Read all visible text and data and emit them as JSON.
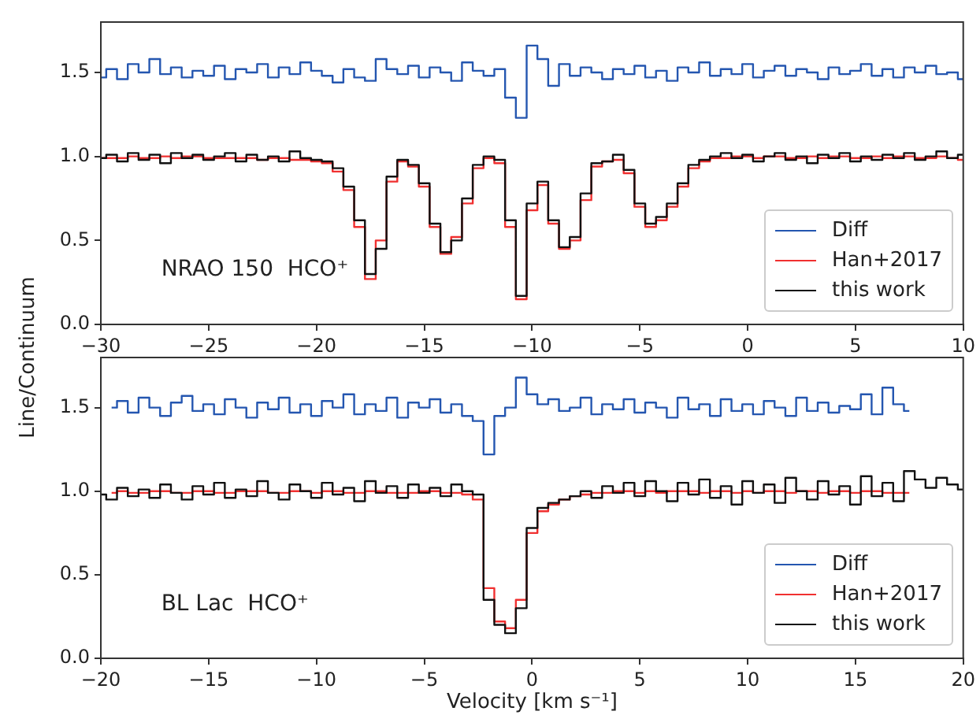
{
  "chart_data": [
    {
      "type": "step",
      "ylabel": "Line/Continuum",
      "annotations": [
        "NRAO 150  HCO⁺"
      ],
      "legend": "bottom right",
      "grid": false,
      "x": [
        -30,
        -29.5,
        -29,
        -28.5,
        -28,
        -27.5,
        -27,
        -26.5,
        -26,
        -25.5,
        -25,
        -24.5,
        -24,
        -23.5,
        -23,
        -22.5,
        -22,
        -21.5,
        -21,
        -20.5,
        -20,
        -19.5,
        -19,
        -18.5,
        -18,
        -17.5,
        -17,
        -16.5,
        -16,
        -15.5,
        -15,
        -14.5,
        -14,
        -13.5,
        -13,
        -12.5,
        -12,
        -11.5,
        -11,
        -10.5,
        -10,
        -9.5,
        -9,
        -8.5,
        -8,
        -7.5,
        -7,
        -6.5,
        -6,
        -5.5,
        -5,
        -4.5,
        -4,
        -3.5,
        -3,
        -2.5,
        -2,
        -1.5,
        -1,
        -0.5,
        0,
        0.5,
        1,
        1.5,
        2,
        2.5,
        3,
        3.5,
        4,
        4.5,
        5,
        5.5,
        6,
        6.5,
        7,
        7.5,
        8,
        8.5,
        9,
        9.5,
        10
      ],
      "xlim": [
        -30,
        10
      ],
      "xticks": [
        {
          "value": -30,
          "label": "−30"
        },
        {
          "value": -25,
          "label": "−25"
        },
        {
          "value": -20,
          "label": "−20"
        },
        {
          "value": -15,
          "label": "−15"
        },
        {
          "value": -10,
          "label": "−10"
        },
        {
          "value": -5,
          "label": "−5"
        },
        0,
        5,
        10
      ],
      "ylim": [
        0,
        1.8
      ],
      "yticks": [
        {
          "value": 0,
          "label": "0.0"
        },
        {
          "value": 0.5,
          "label": "0.5"
        },
        {
          "value": 1,
          "label": "1.0"
        },
        {
          "value": 1.5,
          "label": "1.5"
        }
      ],
      "series": [
        {
          "name": "Diff",
          "color": "#2456b0",
          "values": [
            1.47,
            1.52,
            1.46,
            1.55,
            1.5,
            1.58,
            1.49,
            1.53,
            1.47,
            1.51,
            1.48,
            1.54,
            1.46,
            1.52,
            1.5,
            1.55,
            1.47,
            1.53,
            1.49,
            1.56,
            1.51,
            1.48,
            1.44,
            1.52,
            1.47,
            1.45,
            1.58,
            1.52,
            1.49,
            1.54,
            1.47,
            1.53,
            1.5,
            1.45,
            1.56,
            1.51,
            1.48,
            1.52,
            1.35,
            1.23,
            1.66,
            1.58,
            1.42,
            1.55,
            1.48,
            1.53,
            1.5,
            1.46,
            1.52,
            1.49,
            1.54,
            1.47,
            1.51,
            1.45,
            1.53,
            1.5,
            1.56,
            1.48,
            1.52,
            1.49,
            1.55,
            1.47,
            1.51,
            1.54,
            1.48,
            1.52,
            1.5,
            1.46,
            1.53,
            1.49,
            1.51,
            1.55,
            1.48,
            1.52,
            1.47,
            1.53,
            1.5,
            1.54,
            1.49,
            1.5,
            1.46
          ]
        },
        {
          "name": "Han+2017",
          "color": "#f03030",
          "values": [
            0.99,
            0.99,
            0.99,
            1.0,
            0.99,
            0.99,
            1.0,
            0.99,
            1.0,
            1.0,
            0.99,
            0.99,
            0.99,
            0.99,
            0.99,
            0.98,
            0.99,
            0.99,
            0.98,
            0.98,
            0.97,
            0.96,
            0.91,
            0.8,
            0.58,
            0.27,
            0.5,
            0.85,
            0.97,
            0.94,
            0.82,
            0.58,
            0.42,
            0.52,
            0.72,
            0.93,
            0.99,
            0.96,
            0.58,
            0.15,
            0.68,
            0.83,
            0.6,
            0.45,
            0.5,
            0.74,
            0.94,
            0.97,
            0.98,
            0.9,
            0.7,
            0.58,
            0.62,
            0.7,
            0.82,
            0.93,
            0.97,
            0.99,
            0.99,
            1.0,
            1.0,
            0.99,
            1.0,
            1.0,
            0.99,
            0.99,
            1.0,
            0.99,
            1.0,
            1.0,
            0.99,
            0.99,
            1.0,
            0.99,
            1.0,
            1.0,
            0.99,
            0.99,
            1.0,
            0.99,
            0.98
          ]
        },
        {
          "name": "this work",
          "color": "#111111",
          "values": [
            0.99,
            1.01,
            0.97,
            1.02,
            0.98,
            1.01,
            0.96,
            1.02,
            0.99,
            1.01,
            0.98,
            1.0,
            1.02,
            0.97,
            1.01,
            0.98,
            1.0,
            0.97,
            1.03,
            0.99,
            0.98,
            0.97,
            0.93,
            0.82,
            0.62,
            0.3,
            0.45,
            0.88,
            0.98,
            0.95,
            0.84,
            0.6,
            0.43,
            0.5,
            0.75,
            0.95,
            1.0,
            0.98,
            0.62,
            0.17,
            0.72,
            0.85,
            0.62,
            0.46,
            0.52,
            0.78,
            0.96,
            0.97,
            1.01,
            0.92,
            0.72,
            0.6,
            0.64,
            0.72,
            0.84,
            0.95,
            0.98,
            1.0,
            1.02,
            0.99,
            1.01,
            0.97,
            1.0,
            1.02,
            0.98,
            1.0,
            0.96,
            1.01,
            0.99,
            1.02,
            0.97,
            1.0,
            0.98,
            1.01,
            0.99,
            1.02,
            0.98,
            1.0,
            1.03,
            0.99,
            1.01
          ]
        }
      ]
    },
    {
      "type": "step",
      "xlabel": "Velocity [km s⁻¹]",
      "annotations": [
        "BL Lac  HCO⁺"
      ],
      "legend": "bottom right",
      "grid": false,
      "x": [
        -20,
        -19.5,
        -19,
        -18.5,
        -18,
        -17.5,
        -17,
        -16.5,
        -16,
        -15.5,
        -15,
        -14.5,
        -14,
        -13.5,
        -13,
        -12.5,
        -12,
        -11.5,
        -11,
        -10.5,
        -10,
        -9.5,
        -9,
        -8.5,
        -8,
        -7.5,
        -7,
        -6.5,
        -6,
        -5.5,
        -5,
        -4.5,
        -4,
        -3.5,
        -3,
        -2.5,
        -2,
        -1.5,
        -1,
        -0.5,
        0,
        0.5,
        1,
        1.5,
        2,
        2.5,
        3,
        3.5,
        4,
        4.5,
        5,
        5.5,
        6,
        6.5,
        7,
        7.5,
        8,
        8.5,
        9,
        9.5,
        10,
        10.5,
        11,
        11.5,
        12,
        12.5,
        13,
        13.5,
        14,
        14.5,
        15,
        15.5,
        16,
        16.5,
        17,
        17.5,
        18,
        18.5,
        19,
        19.5,
        20
      ],
      "xlim": [
        -20,
        20
      ],
      "xticks": [
        {
          "value": -20,
          "label": "−20"
        },
        {
          "value": -15,
          "label": "−15"
        },
        {
          "value": -10,
          "label": "−10"
        },
        {
          "value": -5,
          "label": "−5"
        },
        0,
        5,
        10,
        15,
        20
      ],
      "ylim": [
        0,
        1.8
      ],
      "yticks": [
        {
          "value": 0,
          "label": "0.0"
        },
        {
          "value": 0.5,
          "label": "0.5"
        },
        {
          "value": 1,
          "label": "1.0"
        },
        {
          "value": 1.5,
          "label": "1.5"
        }
      ],
      "series": [
        {
          "name": "Diff",
          "color": "#2456b0",
          "values": [
            null,
            1.5,
            1.54,
            1.47,
            1.56,
            1.5,
            1.45,
            1.53,
            1.57,
            1.48,
            1.52,
            1.46,
            1.55,
            1.5,
            1.44,
            1.53,
            1.49,
            1.56,
            1.47,
            1.52,
            1.45,
            1.54,
            1.5,
            1.58,
            1.46,
            1.52,
            1.48,
            1.56,
            1.44,
            1.53,
            1.5,
            1.55,
            1.47,
            1.52,
            1.45,
            1.42,
            1.22,
            1.45,
            1.5,
            1.68,
            1.58,
            1.52,
            1.55,
            1.48,
            1.5,
            1.56,
            1.46,
            1.52,
            1.49,
            1.55,
            1.47,
            1.53,
            1.5,
            1.44,
            1.56,
            1.49,
            1.52,
            1.45,
            1.55,
            1.48,
            1.52,
            1.46,
            1.54,
            1.5,
            1.45,
            1.56,
            1.48,
            1.53,
            1.47,
            1.51,
            1.49,
            1.58,
            1.46,
            1.62,
            1.52,
            1.48,
            null,
            null,
            null,
            null,
            null
          ]
        },
        {
          "name": "Han+2017",
          "color": "#f03030",
          "values": [
            null,
            0.99,
            1.0,
            0.99,
            0.99,
            1.0,
            1.0,
            0.99,
            0.99,
            1.0,
            1.0,
            0.99,
            0.99,
            1.0,
            1.0,
            1.0,
            0.99,
            0.99,
            1.0,
            1.0,
            0.99,
            1.0,
            1.0,
            0.99,
            0.99,
            1.0,
            1.0,
            0.99,
            0.99,
            0.99,
            1.0,
            1.0,
            0.99,
            0.99,
            0.98,
            0.95,
            0.42,
            0.22,
            0.18,
            0.35,
            0.75,
            0.88,
            0.92,
            0.95,
            0.97,
            0.98,
            0.99,
            0.99,
            1.0,
            1.0,
            0.99,
            1.0,
            0.99,
            1.0,
            1.0,
            1.0,
            0.99,
            1.0,
            1.0,
            0.99,
            1.0,
            0.99,
            1.0,
            1.0,
            0.99,
            1.0,
            1.0,
            0.99,
            1.0,
            1.0,
            0.99,
            1.0,
            1.0,
            0.99,
            0.99,
            0.99,
            null,
            null,
            null,
            null,
            null
          ]
        },
        {
          "name": "this work",
          "color": "#111111",
          "values": [
            0.98,
            0.95,
            1.02,
            0.97,
            1.01,
            0.96,
            1.04,
            0.99,
            0.95,
            1.03,
            0.98,
            1.05,
            0.96,
            1.01,
            0.97,
            1.06,
            0.99,
            0.95,
            1.04,
            1.0,
            0.96,
            1.05,
            0.98,
            1.02,
            0.94,
            1.06,
            0.99,
            1.03,
            0.96,
            1.04,
            0.99,
            1.02,
            0.97,
            1.04,
            1.0,
            0.98,
            0.35,
            0.2,
            0.15,
            0.3,
            0.78,
            0.9,
            0.93,
            0.95,
            0.97,
            1.0,
            0.96,
            1.03,
            0.99,
            1.05,
            0.97,
            1.06,
            1.0,
            0.94,
            1.05,
            0.98,
            1.07,
            0.96,
            1.03,
            0.92,
            1.06,
            0.99,
            1.04,
            0.93,
            1.08,
            1.0,
            0.95,
            1.06,
            0.98,
            1.03,
            0.92,
            1.09,
            0.97,
            1.05,
            0.94,
            1.12,
            1.07,
            1.02,
            1.08,
            1.04,
            1.01
          ]
        }
      ]
    }
  ]
}
